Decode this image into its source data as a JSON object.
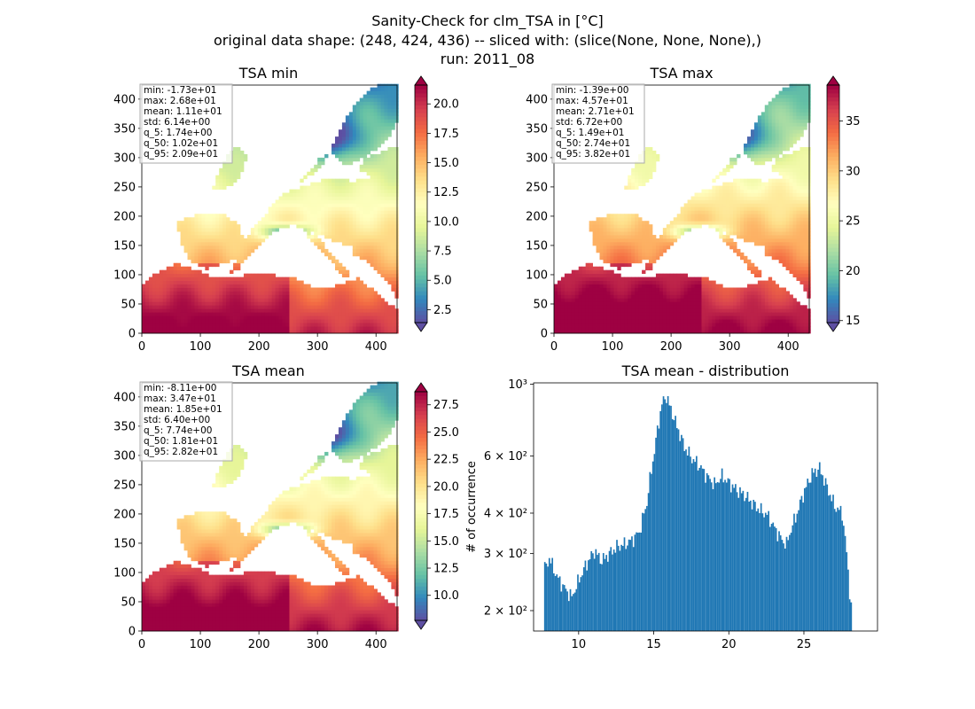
{
  "figure": {
    "title_lines": [
      "Sanity-Check for clm_TSA in [°C]",
      "original data shape: (248, 424, 436) -- sliced with: (slice(None, None, None),)",
      "run: 2011_08"
    ]
  },
  "colormap": [
    "#5e4fa2",
    "#3288bd",
    "#66c2a5",
    "#abdda4",
    "#e6f598",
    "#ffffbf",
    "#fee08b",
    "#fdae61",
    "#f46d43",
    "#d53e4f",
    "#9e0142"
  ],
  "chart_data": [
    {
      "type": "heatmap",
      "title": "TSA min",
      "xlim": [
        0,
        436
      ],
      "ylim": [
        0,
        424
      ],
      "xticks": [
        "0",
        "100",
        "200",
        "300",
        "400"
      ],
      "yticks": [
        "0",
        "50",
        "100",
        "150",
        "200",
        "250",
        "300",
        "350",
        "400"
      ],
      "colorbar": {
        "range": [
          1.4,
          21.6
        ],
        "ticks": [
          "2.5",
          "5.0",
          "7.5",
          "10.0",
          "12.5",
          "15.0",
          "17.5",
          "20.0"
        ],
        "extend": "both"
      },
      "stats": [
        "min: -1.73e+01",
        "max: 2.68e+01",
        "mean: 1.11e+01",
        "std: 6.14e+00",
        "q_5: 1.74e+00",
        "q_50: 1.02e+01",
        "q_95: 2.09e+01"
      ]
    },
    {
      "type": "heatmap",
      "title": "TSA max",
      "xlim": [
        0,
        436
      ],
      "ylim": [
        0,
        424
      ],
      "xticks": [
        "0",
        "100",
        "200",
        "300",
        "400"
      ],
      "yticks": [
        "0",
        "50",
        "100",
        "150",
        "200",
        "250",
        "300",
        "350",
        "400"
      ],
      "colorbar": {
        "range": [
          14.8,
          38.6
        ],
        "ticks": [
          "15",
          "20",
          "25",
          "30",
          "35"
        ],
        "extend": "both"
      },
      "stats": [
        "min: -1.39e+00",
        "max: 4.57e+01",
        "mean: 2.71e+01",
        "std: 6.72e+00",
        "q_5: 1.49e+01",
        "q_50: 2.74e+01",
        "q_95: 3.82e+01"
      ]
    },
    {
      "type": "heatmap",
      "title": "TSA mean",
      "xlim": [
        0,
        436
      ],
      "ylim": [
        0,
        424
      ],
      "xticks": [
        "0",
        "100",
        "200",
        "300",
        "400"
      ],
      "yticks": [
        "0",
        "50",
        "100",
        "150",
        "200",
        "250",
        "300",
        "350",
        "400"
      ],
      "colorbar": {
        "range": [
          7.7,
          28.7
        ],
        "ticks": [
          "10.0",
          "12.5",
          "15.0",
          "17.5",
          "20.0",
          "22.5",
          "25.0",
          "27.5"
        ],
        "extend": "both"
      },
      "stats": [
        "min: -8.11e+00",
        "max: 3.47e+01",
        "mean: 1.85e+01",
        "std: 6.40e+00",
        "q_5: 7.74e+00",
        "q_50: 1.81e+01",
        "q_95: 2.82e+01"
      ]
    },
    {
      "type": "bar",
      "title": "TSA mean - distribution",
      "ylabel": "# of occurrence",
      "yscale": "log",
      "xlim": [
        7.0,
        29.9
      ],
      "ylim": [
        173,
        1010
      ],
      "xticks": [
        10,
        15,
        20,
        25
      ],
      "yticks": [
        {
          "value": 200,
          "label": "2 × 10²"
        },
        {
          "value": 300,
          "label": "3 × 10²"
        },
        {
          "value": 400,
          "label": "4 × 10²"
        },
        {
          "value": 600,
          "label": "6 × 10²"
        },
        {
          "value": 1000,
          "label": "10³"
        }
      ],
      "bar_color": "#1f77b4",
      "bin_width": 0.1,
      "bins": [
        {
          "x": 7.7,
          "y": 270
        },
        {
          "x": 8.0,
          "y": 290
        },
        {
          "x": 8.5,
          "y": 255
        },
        {
          "x": 9.0,
          "y": 235
        },
        {
          "x": 9.5,
          "y": 220
        },
        {
          "x": 10.0,
          "y": 250
        },
        {
          "x": 10.5,
          "y": 280
        },
        {
          "x": 11.0,
          "y": 305
        },
        {
          "x": 11.5,
          "y": 285
        },
        {
          "x": 12.0,
          "y": 300
        },
        {
          "x": 12.5,
          "y": 315
        },
        {
          "x": 13.0,
          "y": 320
        },
        {
          "x": 13.5,
          "y": 330
        },
        {
          "x": 14.0,
          "y": 350
        },
        {
          "x": 14.5,
          "y": 430
        },
        {
          "x": 15.0,
          "y": 620
        },
        {
          "x": 15.5,
          "y": 870
        },
        {
          "x": 15.8,
          "y": 920
        },
        {
          "x": 16.0,
          "y": 860
        },
        {
          "x": 16.5,
          "y": 740
        },
        {
          "x": 17.0,
          "y": 640
        },
        {
          "x": 17.5,
          "y": 590
        },
        {
          "x": 18.0,
          "y": 560
        },
        {
          "x": 18.5,
          "y": 520
        },
        {
          "x": 19.0,
          "y": 490
        },
        {
          "x": 19.5,
          "y": 520
        },
        {
          "x": 20.0,
          "y": 495
        },
        {
          "x": 20.5,
          "y": 470
        },
        {
          "x": 21.0,
          "y": 455
        },
        {
          "x": 21.5,
          "y": 430
        },
        {
          "x": 22.0,
          "y": 410
        },
        {
          "x": 22.5,
          "y": 395
        },
        {
          "x": 23.0,
          "y": 360
        },
        {
          "x": 23.5,
          "y": 330
        },
        {
          "x": 23.8,
          "y": 320
        },
        {
          "x": 24.0,
          "y": 345
        },
        {
          "x": 24.5,
          "y": 400
        },
        {
          "x": 25.0,
          "y": 470
        },
        {
          "x": 25.5,
          "y": 530
        },
        {
          "x": 26.0,
          "y": 550
        },
        {
          "x": 26.5,
          "y": 480
        },
        {
          "x": 27.0,
          "y": 420
        },
        {
          "x": 27.5,
          "y": 400
        },
        {
          "x": 27.8,
          "y": 300
        },
        {
          "x": 28.0,
          "y": 230
        },
        {
          "x": 28.2,
          "y": 180
        }
      ]
    }
  ]
}
